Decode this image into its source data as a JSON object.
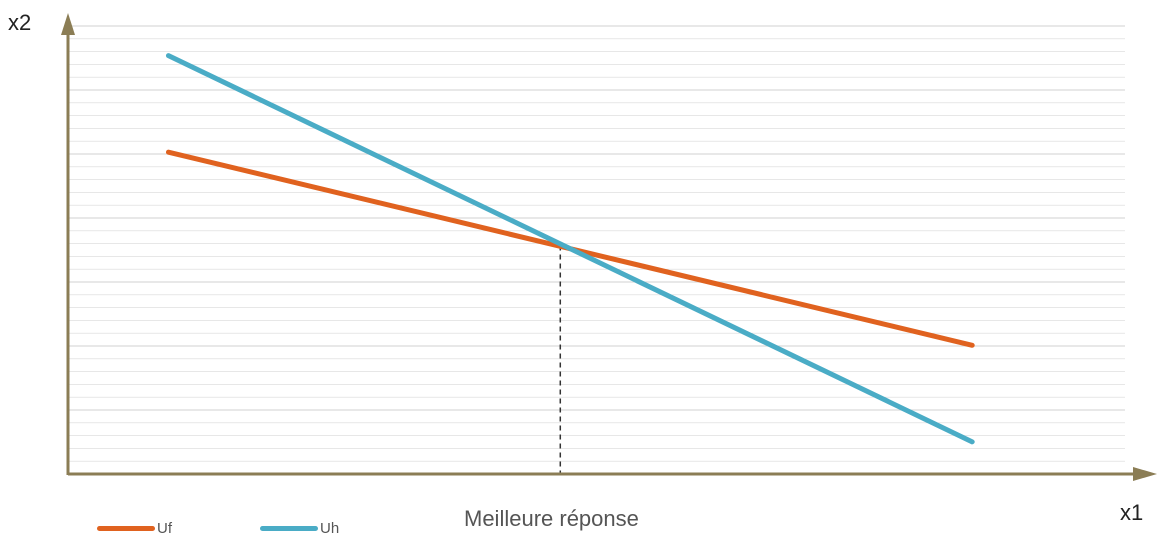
{
  "colors": {
    "axis": "#8B7D55",
    "grid": "#D9D9D9",
    "dashed": "#333333"
  },
  "chart_data": {
    "type": "line",
    "title": "",
    "xlabel": "x1",
    "ylabel": "x2",
    "caption": "Meilleure réponse",
    "xlim": [
      0,
      10.7
    ],
    "ylim": [
      0,
      7.1
    ],
    "grid": "horizontal",
    "legend_position": "bottom-left",
    "series": [
      {
        "name": "Uf",
        "color": "#E0621F",
        "x": [
          1,
          9
        ],
        "y": [
          5.0,
          2.0
        ]
      },
      {
        "name": "Uh",
        "color": "#4AACC6",
        "x": [
          1,
          9
        ],
        "y": [
          6.5,
          0.5
        ]
      }
    ],
    "annotations": [
      {
        "type": "dashed-vertical",
        "x": 4.9,
        "y_from": 0,
        "y_to": 3.55
      }
    ]
  }
}
